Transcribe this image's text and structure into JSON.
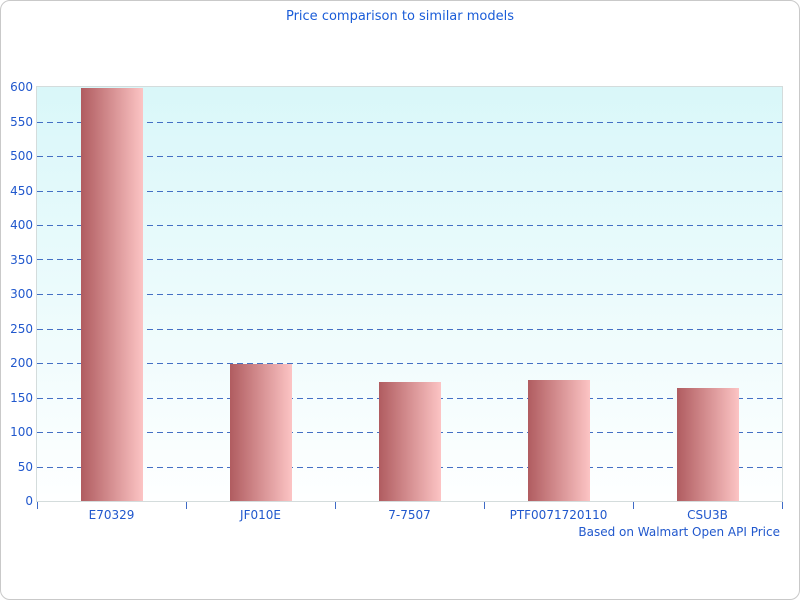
{
  "chart_data": {
    "type": "bar",
    "title": "Price comparison to similar models",
    "categories": [
      "E70329",
      "JF010E",
      "7-7507",
      "PTF0071720110",
      "CSU3B"
    ],
    "values": [
      598,
      199,
      172,
      175,
      164
    ],
    "xlabel": "",
    "ylabel": "",
    "ylim": [
      0,
      600
    ],
    "ytick_step": 50,
    "yticks": [
      0,
      50,
      100,
      150,
      200,
      250,
      300,
      350,
      400,
      450,
      500,
      550,
      600
    ],
    "grid": "horizontal-dashed",
    "legend_position": "none",
    "footnote": "Based on Walmart Open API Price"
  },
  "colors": {
    "title_text": "#1a5cd8",
    "axis_text": "#2158cd",
    "gridline": "#4470c4",
    "tick_mark": "#3f6bc6",
    "plot_border": "#d4dcdc",
    "plot_bg_top": "#d9f7f9",
    "plot_bg_bottom": "#feffff",
    "bar_gradient_left": "#b05c60",
    "bar_gradient_right": "#fcc4c4",
    "frame_border": "#c9c9c9"
  }
}
